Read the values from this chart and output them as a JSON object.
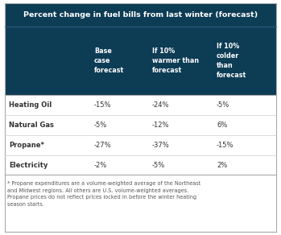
{
  "title": "Percent change in fuel bills from last winter (forecast)",
  "header_bg": "#0d3c55",
  "header_text_color": "#ffffff",
  "body_bg": "#ffffff",
  "col_headers": [
    "Base\ncase\nforecast",
    "If 10%\nwarmer than\nforecast",
    "If 10%\ncolder\nthan\nforecast"
  ],
  "rows": [
    {
      "label": "Heating Oil",
      "values": [
        "-15%",
        "-24%",
        "-5%"
      ]
    },
    {
      "label": "Natural Gas",
      "values": [
        "-5%",
        "-12%",
        "6%"
      ]
    },
    {
      "label": "Propane*",
      "values": [
        "-27%",
        "-37%",
        "-15%"
      ]
    },
    {
      "label": "Electricity",
      "values": [
        "-2%",
        "-5%",
        "2%"
      ]
    }
  ],
  "footnote": "* Propane expenditures are a volume-weighted average of the Northeast\nand Midwest regions. All others are U.S. volume-weighted averages.\nPropane prices do not reflect prices locked in before the winter heating\nseason starts.",
  "separator_color": "#aaaaaa",
  "row_div_color": "#cccccc",
  "text_color": "#333333"
}
